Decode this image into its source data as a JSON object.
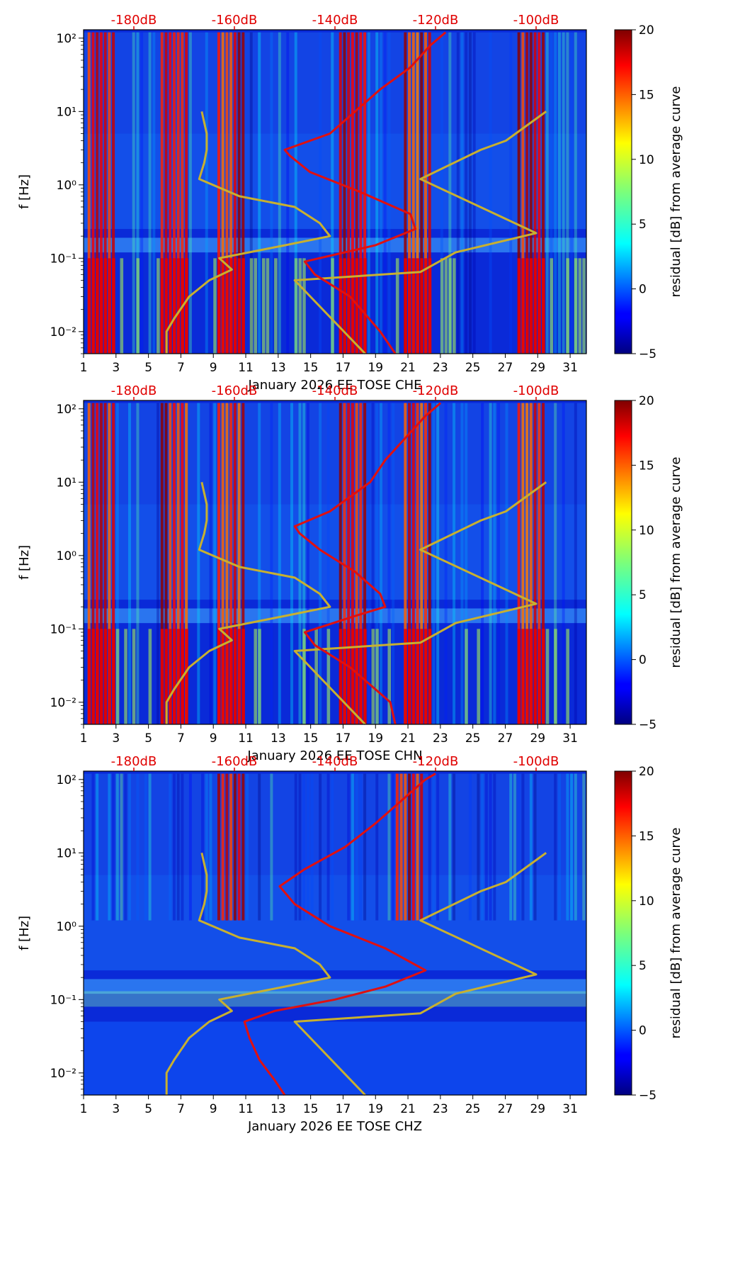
{
  "chart_data": [
    {
      "type": "heatmap",
      "title": "",
      "xlabel": "January 2026 EE TOSE  CHE",
      "ylabel": "f [Hz]",
      "x_ticks": [
        "1",
        "3",
        "5",
        "7",
        "9",
        "11",
        "13",
        "15",
        "17",
        "19",
        "21",
        "23",
        "25",
        "27",
        "29",
        "31"
      ],
      "y_ticks": [
        "10⁻²",
        "10⁻¹",
        "10⁰",
        "10¹",
        "10²"
      ],
      "xlim": [
        1,
        32
      ],
      "ylim": [
        0.005,
        130
      ],
      "db_ticks": [
        "-180dB",
        "-160dB",
        "-140dB",
        "-120dB",
        "-100dB"
      ],
      "colorbar_label": "residual [dB] from average curve",
      "colorbar_ticks": [
        "20",
        "15",
        "10",
        "5",
        "0",
        "−5"
      ],
      "clim": [
        -5,
        20
      ],
      "hot_days": [
        2,
        6.5,
        10,
        17.5,
        21.5,
        28.5
      ],
      "noise_model_curve_db": [
        {
          "f": 0.005,
          "db": -173.5
        },
        {
          "f": 0.01,
          "db": -173.5
        },
        {
          "f": 0.015,
          "db": -172
        },
        {
          "f": 0.03,
          "db": -169
        },
        {
          "f": 0.05,
          "db": -165
        },
        {
          "f": 0.07,
          "db": -160.5
        },
        {
          "f": 0.1,
          "db": -163
        },
        {
          "f": 0.15,
          "db": -150
        },
        {
          "f": 0.2,
          "db": -141
        },
        {
          "f": 0.3,
          "db": -143
        },
        {
          "f": 0.5,
          "db": -148
        },
        {
          "f": 0.7,
          "db": -159
        },
        {
          "f": 1.2,
          "db": -167
        },
        {
          "f": 2,
          "db": -166
        },
        {
          "f": 3,
          "db": -165.5
        },
        {
          "f": 5,
          "db": -165.5
        },
        {
          "f": 10,
          "db": -166.5
        }
      ],
      "high_noise_curve_db": [
        {
          "f": 0.005,
          "db": -134
        },
        {
          "f": 0.05,
          "db": -148
        },
        {
          "f": 0.065,
          "db": -123
        },
        {
          "f": 0.12,
          "db": -116
        },
        {
          "f": 0.22,
          "db": -100
        },
        {
          "f": 1.2,
          "db": -123
        },
        {
          "f": 3,
          "db": -111
        },
        {
          "f": 4,
          "db": -106
        },
        {
          "f": 10,
          "db": -98
        }
      ],
      "median_psd_db": [
        {
          "f": 0.005,
          "db": -128
        },
        {
          "f": 0.01,
          "db": -131
        },
        {
          "f": 0.03,
          "db": -137
        },
        {
          "f": 0.06,
          "db": -144
        },
        {
          "f": 0.09,
          "db": -146
        },
        {
          "f": 0.15,
          "db": -132
        },
        {
          "f": 0.25,
          "db": -124
        },
        {
          "f": 0.4,
          "db": -125
        },
        {
          "f": 0.8,
          "db": -135
        },
        {
          "f": 1.5,
          "db": -145
        },
        {
          "f": 2.5,
          "db": -149
        },
        {
          "f": 3,
          "db": -150
        },
        {
          "f": 5,
          "db": -141
        },
        {
          "f": 10,
          "db": -136
        },
        {
          "f": 20,
          "db": -131
        },
        {
          "f": 40,
          "db": -125
        },
        {
          "f": 80,
          "db": -121
        },
        {
          "f": 120,
          "db": -118
        }
      ]
    },
    {
      "type": "heatmap",
      "title": "",
      "xlabel": "January 2026 EE TOSE  CHN",
      "ylabel": "f [Hz]",
      "x_ticks": [
        "1",
        "3",
        "5",
        "7",
        "9",
        "11",
        "13",
        "15",
        "17",
        "19",
        "21",
        "23",
        "25",
        "27",
        "29",
        "31"
      ],
      "y_ticks": [
        "10⁻²",
        "10⁻¹",
        "10⁰",
        "10¹",
        "10²"
      ],
      "xlim": [
        1,
        32
      ],
      "ylim": [
        0.005,
        130
      ],
      "db_ticks": [
        "-180dB",
        "-160dB",
        "-140dB",
        "-120dB",
        "-100dB"
      ],
      "colorbar_label": "residual [dB] from average curve",
      "colorbar_ticks": [
        "20",
        "15",
        "10",
        "5",
        "0",
        "−5"
      ],
      "clim": [
        -5,
        20
      ],
      "hot_days": [
        2,
        6.5,
        10,
        17.5,
        21.5,
        28.5
      ],
      "noise_model_curve_db": [
        {
          "f": 0.005,
          "db": -173.5
        },
        {
          "f": 0.01,
          "db": -173.5
        },
        {
          "f": 0.015,
          "db": -172
        },
        {
          "f": 0.03,
          "db": -169
        },
        {
          "f": 0.05,
          "db": -165
        },
        {
          "f": 0.07,
          "db": -160.5
        },
        {
          "f": 0.1,
          "db": -163
        },
        {
          "f": 0.15,
          "db": -150
        },
        {
          "f": 0.2,
          "db": -141
        },
        {
          "f": 0.3,
          "db": -143
        },
        {
          "f": 0.5,
          "db": -148
        },
        {
          "f": 0.7,
          "db": -159
        },
        {
          "f": 1.2,
          "db": -167
        },
        {
          "f": 2,
          "db": -166
        },
        {
          "f": 3,
          "db": -165.5
        },
        {
          "f": 5,
          "db": -165.5
        },
        {
          "f": 10,
          "db": -166.5
        }
      ],
      "high_noise_curve_db": [
        {
          "f": 0.005,
          "db": -134
        },
        {
          "f": 0.05,
          "db": -148
        },
        {
          "f": 0.065,
          "db": -123
        },
        {
          "f": 0.12,
          "db": -116
        },
        {
          "f": 0.22,
          "db": -100
        },
        {
          "f": 1.2,
          "db": -123
        },
        {
          "f": 3,
          "db": -111
        },
        {
          "f": 4,
          "db": -106
        },
        {
          "f": 10,
          "db": -98
        }
      ],
      "median_psd_db": [
        {
          "f": 0.005,
          "db": -128
        },
        {
          "f": 0.01,
          "db": -129
        },
        {
          "f": 0.03,
          "db": -137
        },
        {
          "f": 0.06,
          "db": -144
        },
        {
          "f": 0.09,
          "db": -146
        },
        {
          "f": 0.15,
          "db": -136
        },
        {
          "f": 0.2,
          "db": -130
        },
        {
          "f": 0.3,
          "db": -131
        },
        {
          "f": 0.6,
          "db": -136
        },
        {
          "f": 1.2,
          "db": -143
        },
        {
          "f": 2,
          "db": -147
        },
        {
          "f": 2.5,
          "db": -148
        },
        {
          "f": 4,
          "db": -141
        },
        {
          "f": 10,
          "db": -133
        },
        {
          "f": 20,
          "db": -130
        },
        {
          "f": 40,
          "db": -126
        },
        {
          "f": 80,
          "db": -122
        },
        {
          "f": 120,
          "db": -119
        }
      ]
    },
    {
      "type": "heatmap",
      "title": "",
      "xlabel": "January 2026 EE TOSE  CHZ",
      "ylabel": "f [Hz]",
      "x_ticks": [
        "1",
        "3",
        "5",
        "7",
        "9",
        "11",
        "13",
        "15",
        "17",
        "19",
        "21",
        "23",
        "25",
        "27",
        "29",
        "31"
      ],
      "y_ticks": [
        "10⁻²",
        "10⁻¹",
        "10⁰",
        "10¹",
        "10²"
      ],
      "xlim": [
        1,
        32
      ],
      "ylim": [
        0.005,
        130
      ],
      "db_ticks": [
        "-180dB",
        "-160dB",
        "-140dB",
        "-120dB",
        "-100dB"
      ],
      "colorbar_label": "residual [dB] from average curve",
      "colorbar_ticks": [
        "20",
        "15",
        "10",
        "5",
        "0",
        "−5"
      ],
      "clim": [
        -5,
        20
      ],
      "hot_days": [
        10,
        21
      ],
      "noise_model_curve_db": [
        {
          "f": 0.005,
          "db": -173.5
        },
        {
          "f": 0.01,
          "db": -173.5
        },
        {
          "f": 0.015,
          "db": -172
        },
        {
          "f": 0.03,
          "db": -169
        },
        {
          "f": 0.05,
          "db": -165
        },
        {
          "f": 0.07,
          "db": -160.5
        },
        {
          "f": 0.1,
          "db": -163
        },
        {
          "f": 0.15,
          "db": -150
        },
        {
          "f": 0.2,
          "db": -141
        },
        {
          "f": 0.3,
          "db": -143
        },
        {
          "f": 0.5,
          "db": -148
        },
        {
          "f": 0.7,
          "db": -159
        },
        {
          "f": 1.2,
          "db": -167
        },
        {
          "f": 2,
          "db": -166
        },
        {
          "f": 3,
          "db": -165.5
        },
        {
          "f": 5,
          "db": -165.5
        },
        {
          "f": 10,
          "db": -166.5
        }
      ],
      "high_noise_curve_db": [
        {
          "f": 0.005,
          "db": -134
        },
        {
          "f": 0.05,
          "db": -148
        },
        {
          "f": 0.065,
          "db": -123
        },
        {
          "f": 0.12,
          "db": -116
        },
        {
          "f": 0.22,
          "db": -100
        },
        {
          "f": 1.2,
          "db": -123
        },
        {
          "f": 3,
          "db": -111
        },
        {
          "f": 4,
          "db": -106
        },
        {
          "f": 10,
          "db": -98
        }
      ],
      "median_psd_db": [
        {
          "f": 0.005,
          "db": -150
        },
        {
          "f": 0.008,
          "db": -152
        },
        {
          "f": 0.015,
          "db": -155
        },
        {
          "f": 0.03,
          "db": -157
        },
        {
          "f": 0.05,
          "db": -158
        },
        {
          "f": 0.07,
          "db": -152
        },
        {
          "f": 0.1,
          "db": -140
        },
        {
          "f": 0.15,
          "db": -130
        },
        {
          "f": 0.25,
          "db": -122
        },
        {
          "f": 0.5,
          "db": -130
        },
        {
          "f": 1,
          "db": -141
        },
        {
          "f": 2,
          "db": -148
        },
        {
          "f": 3.5,
          "db": -151
        },
        {
          "f": 6,
          "db": -146
        },
        {
          "f": 12,
          "db": -138
        },
        {
          "f": 25,
          "db": -132
        },
        {
          "f": 50,
          "db": -127
        },
        {
          "f": 100,
          "db": -122
        },
        {
          "f": 120,
          "db": -120
        }
      ]
    }
  ]
}
